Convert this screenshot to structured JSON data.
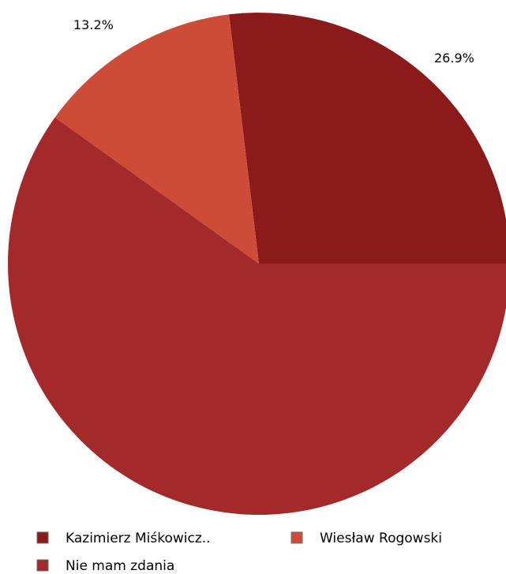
{
  "chart_data": {
    "type": "pie",
    "start_angle_deg": 0,
    "direction": "counterclockwise",
    "slices": [
      {
        "name": "Kazimierz Miśkowicz..",
        "value": 26.9,
        "label": "26.9%",
        "color": "#8b1a1a"
      },
      {
        "name": "Wiesław Rogowski",
        "value": 13.2,
        "label": "13.2%",
        "color": "#cd4c37"
      },
      {
        "name": "Nie mam zdania",
        "value": 59.9,
        "label": "",
        "color": "#a4292a"
      }
    ],
    "legend": {
      "position": "bottom",
      "items": [
        {
          "label": "Kazimierz Miśkowicz..",
          "color": "#8b1a1a"
        },
        {
          "label": "Wiesław Rogowski",
          "color": "#cd4c37"
        },
        {
          "label": "Nie mam zdania",
          "color": "#a4292a"
        }
      ]
    }
  }
}
